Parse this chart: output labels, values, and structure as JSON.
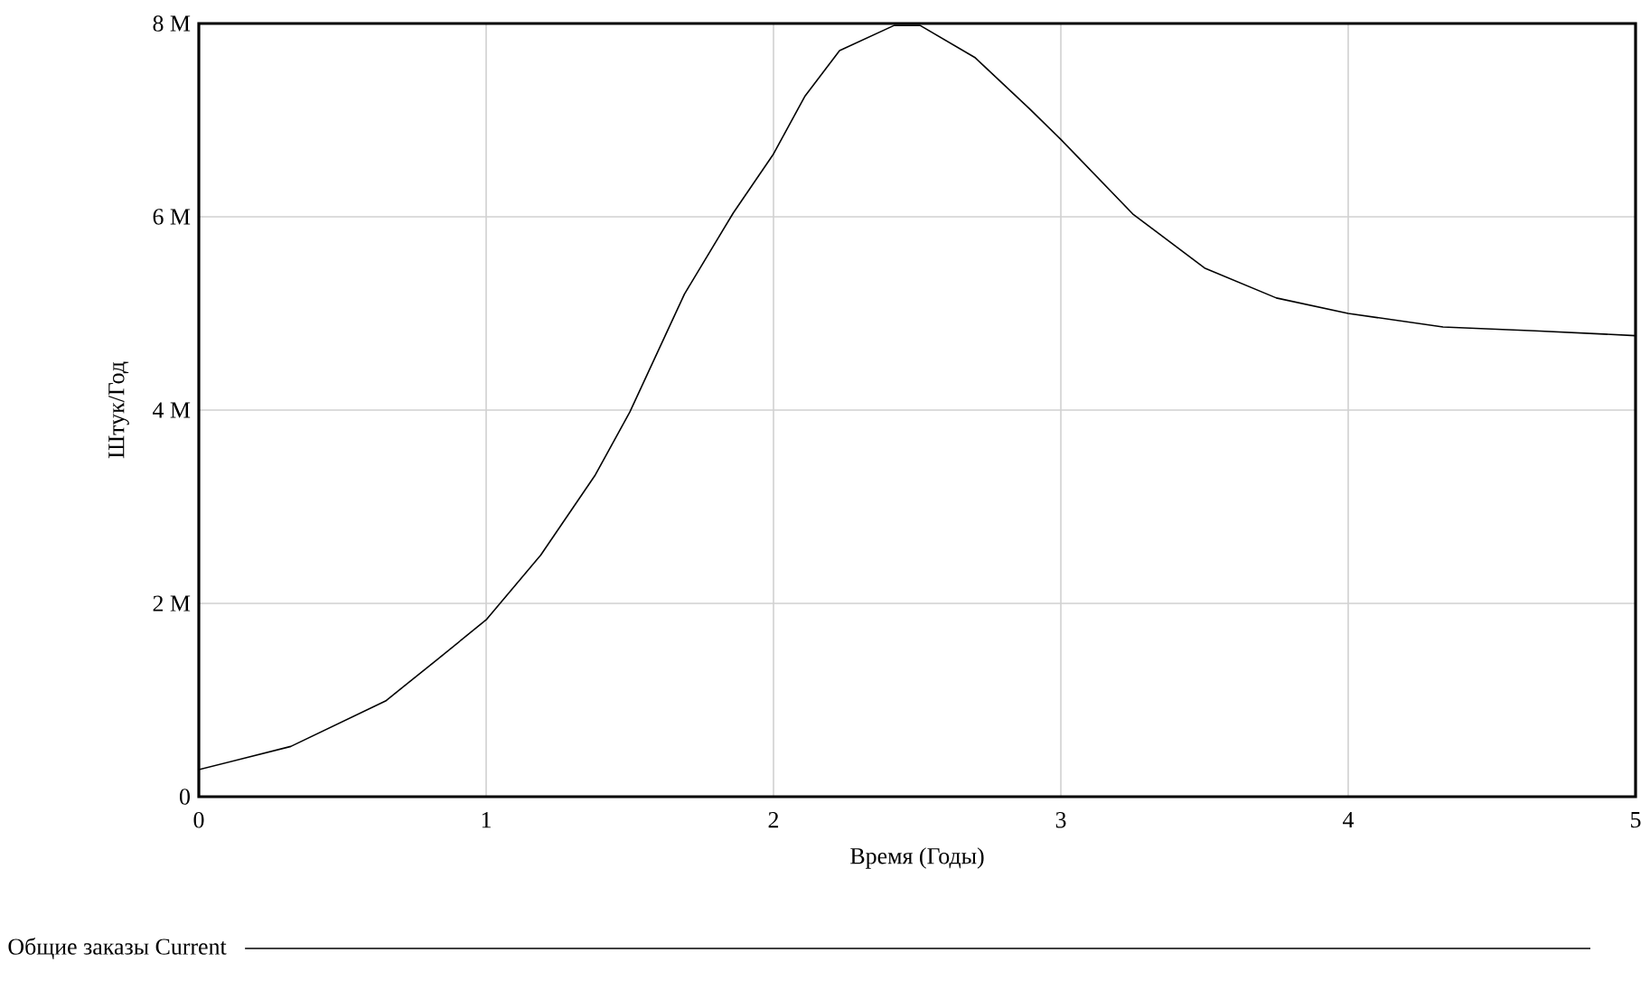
{
  "chart_data": {
    "type": "line",
    "xlabel": "Время (Годы)",
    "ylabel": "Штук/Год",
    "x": [
      0,
      0.32,
      0.65,
      0.83,
      1.0,
      1.19,
      1.38,
      1.5,
      1.69,
      1.86,
      2.0,
      2.11,
      2.23,
      2.42,
      2.51,
      2.7,
      2.89,
      3.0,
      3.25,
      3.5,
      3.75,
      4.0,
      4.33,
      4.65,
      5.0
    ],
    "series": [
      {
        "name": "Общие заказы Current",
        "color": "#000000",
        "values": [
          0.28,
          0.52,
          0.99,
          1.42,
          1.83,
          2.5,
          3.33,
          3.98,
          5.2,
          6.04,
          6.65,
          7.25,
          7.72,
          7.98,
          7.98,
          7.65,
          7.12,
          6.8,
          6.03,
          5.47,
          5.16,
          5.0,
          4.86,
          4.82,
          4.77
        ]
      }
    ],
    "xlim": [
      0,
      5
    ],
    "ylim": [
      0,
      8
    ],
    "xticks": [
      0,
      1,
      2,
      3,
      4,
      5
    ],
    "yticks": [
      0,
      {
        "value": 2,
        "label": "2 M"
      },
      {
        "value": 4,
        "label": "4 M"
      },
      {
        "value": 6,
        "label": "6 M"
      },
      {
        "value": 8,
        "label": "8 M"
      }
    ],
    "grid": true,
    "legend": "bottom"
  }
}
